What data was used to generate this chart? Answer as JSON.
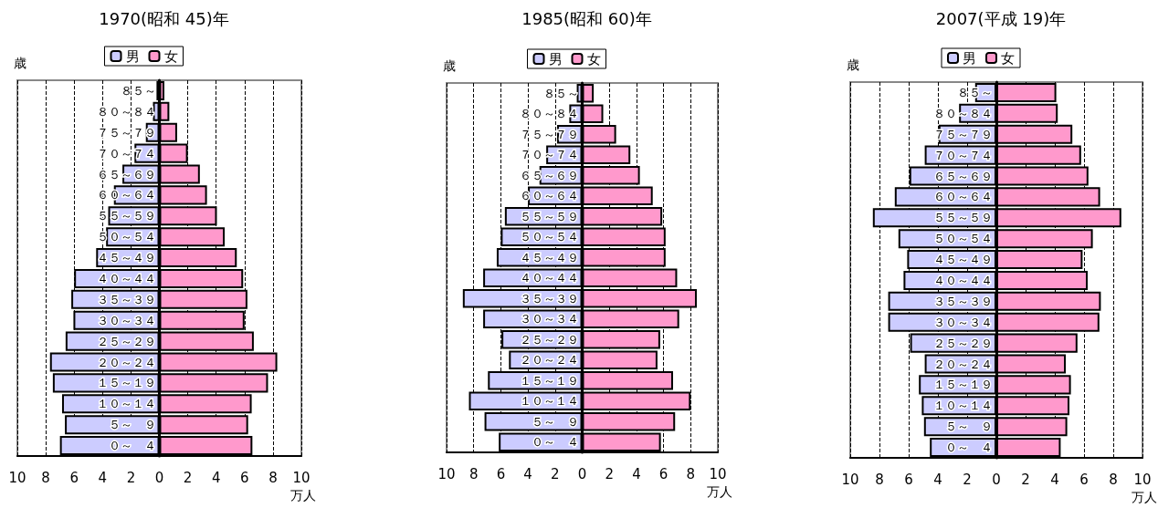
{
  "chart_data": [
    {
      "type": "bar",
      "orientation": "horizontal",
      "stacked": true,
      "title": "1970(昭和 45)年",
      "xlabel": "万人",
      "ylabel": "歳",
      "legend": "top",
      "grid": "x",
      "categories": [
        "８５～",
        "８０～８４",
        "７５～７９",
        "７０～７４",
        "６５～６９",
        "６０～６４",
        "５５～５９",
        "５０～５４",
        "４５～４９",
        "４０～４４",
        "３５～３９",
        "３０～３４",
        "２５～２９",
        "２０～２４",
        "１５～１９",
        "１０～１４",
        "５～　９",
        "０～　４"
      ],
      "series": [
        {
          "name": "男",
          "color": "#ccccff",
          "values": [
            -0.2,
            -0.45,
            -0.95,
            -1.75,
            -2.6,
            -3.2,
            -3.6,
            -3.75,
            -4.45,
            -6.0,
            -6.2,
            -6.05,
            -6.6,
            -7.7,
            -7.5,
            -6.85,
            -6.65,
            -7.0
          ]
        },
        {
          "name": "女",
          "color": "#ff99cc",
          "values": [
            0.35,
            0.7,
            1.25,
            2.0,
            2.85,
            3.35,
            4.05,
            4.6,
            5.45,
            5.9,
            6.2,
            6.0,
            6.65,
            8.3,
            7.65,
            6.5,
            6.25,
            6.55
          ]
        }
      ],
      "xlim": [
        -10,
        10
      ],
      "xticks": [
        {
          "value": -10,
          "label": "10"
        },
        {
          "value": -8,
          "label": "8"
        },
        {
          "value": -6,
          "label": "6"
        },
        {
          "value": -4,
          "label": "4"
        },
        {
          "value": -2,
          "label": "2"
        },
        0,
        2,
        4,
        6,
        8,
        10
      ]
    },
    {
      "type": "bar",
      "orientation": "horizontal",
      "stacked": true,
      "title": "1985(昭和 60)年",
      "xlabel": "万人",
      "ylabel": "歳",
      "legend": "top",
      "grid": "x",
      "categories": [
        "８５～",
        "８０～８４",
        "７５～７９",
        "７０～７４",
        "６５～６９",
        "６０～６４",
        "５５～５９",
        "５０～５４",
        "４５～４９",
        "４０～４４",
        "３５～３９",
        "３０～３４",
        "２５～２９",
        "２０～２４",
        "１５～１９",
        "１０～１４",
        "５～　９",
        "０～　４"
      ],
      "series": [
        {
          "name": "男",
          "color": "#ccccff",
          "values": [
            -0.4,
            -0.95,
            -1.85,
            -2.65,
            -3.15,
            -4.0,
            -5.7,
            -6.0,
            -6.3,
            -7.3,
            -8.8,
            -7.3,
            -5.95,
            -5.4,
            -6.95,
            -8.35,
            -7.2,
            -6.15
          ]
        },
        {
          "name": "女",
          "color": "#ff99cc",
          "values": [
            0.85,
            1.55,
            2.5,
            3.55,
            4.25,
            5.2,
            5.9,
            6.15,
            6.15,
            7.0,
            8.45,
            7.15,
            5.75,
            5.55,
            6.7,
            8.0,
            6.85,
            5.8
          ]
        }
      ],
      "xlim": [
        -10,
        10
      ],
      "xticks": [
        {
          "value": -10,
          "label": "10"
        },
        {
          "value": -8,
          "label": "8"
        },
        {
          "value": -6,
          "label": "6"
        },
        {
          "value": -4,
          "label": "4"
        },
        {
          "value": -2,
          "label": "2"
        },
        0,
        2,
        4,
        6,
        8,
        10
      ]
    },
    {
      "type": "bar",
      "orientation": "horizontal",
      "stacked": true,
      "title": "2007(平成 19)年",
      "xlabel": "万人",
      "ylabel": "歳",
      "legend": "top",
      "grid": "x",
      "categories": [
        "８５～",
        "８０～８４",
        "７５～７９",
        "７０～７４",
        "６５～６９",
        "６０～６４",
        "５５～５９",
        "５０～５４",
        "４５～４９",
        "４０～４４",
        "３５～３９",
        "３０～３４",
        "２５～２９",
        "２０～２４",
        "１５～１９",
        "１０～１４",
        "５～　９",
        "０～　４"
      ],
      "series": [
        {
          "name": "男",
          "color": "#ccccff",
          "values": [
            -1.45,
            -2.55,
            -3.95,
            -4.9,
            -5.95,
            -6.95,
            -8.45,
            -6.7,
            -6.1,
            -6.35,
            -7.4,
            -7.4,
            -5.9,
            -4.9,
            -5.3,
            -5.1,
            -4.95,
            -4.55
          ]
        },
        {
          "name": "女",
          "color": "#ff99cc",
          "values": [
            4.1,
            4.2,
            5.2,
            5.8,
            6.3,
            7.1,
            8.55,
            6.6,
            5.9,
            6.25,
            7.15,
            7.05,
            5.55,
            4.75,
            5.1,
            5.0,
            4.85,
            4.4
          ]
        }
      ],
      "xlim": [
        -10,
        10
      ],
      "xticks": [
        {
          "value": -10,
          "label": "10"
        },
        {
          "value": -8,
          "label": "8"
        },
        {
          "value": -6,
          "label": "6"
        },
        {
          "value": -4,
          "label": "4"
        },
        {
          "value": -2,
          "label": "2"
        },
        0,
        2,
        4,
        6,
        8,
        10
      ]
    }
  ]
}
